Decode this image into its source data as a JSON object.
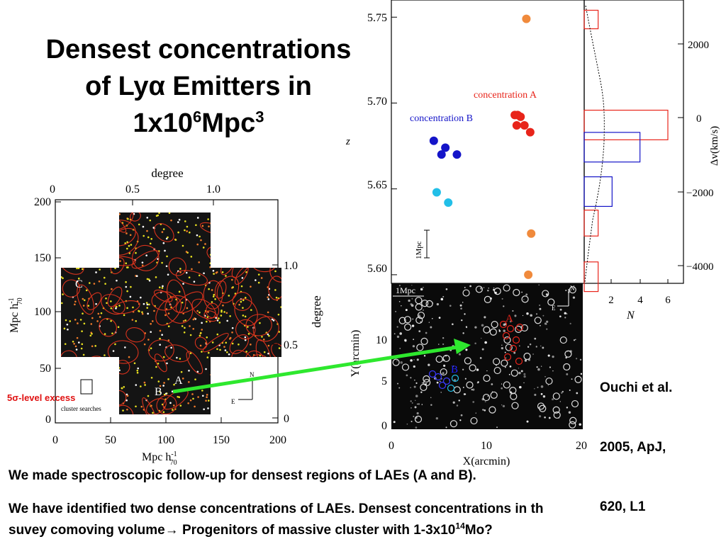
{
  "title": {
    "line1": "Densest concentrations",
    "line2": "of Lyα Emitters in",
    "line3_pre": "1x10",
    "line3_sup1": "6",
    "line3_mid": "Mpc",
    "line3_sup2": "3"
  },
  "left_map": {
    "top_axis_label": "degree",
    "top_ticks": [
      "0",
      "0.5",
      "1.0"
    ],
    "right_axis_label": "degree",
    "right_ticks": [
      "1.0",
      "0.5",
      "0"
    ],
    "left_axis_label": "Mpc h",
    "left_axis_sup": "-1",
    "left_axis_sub": "70",
    "left_ticks": [
      "200",
      "150",
      "100",
      "50",
      "0"
    ],
    "bottom_axis_label": "Mpc h",
    "bottom_axis_sup": "-1",
    "bottom_axis_sub": "70",
    "bottom_ticks": [
      "0",
      "50",
      "100",
      "150",
      "200"
    ],
    "marker_a": "A",
    "marker_b": "B",
    "marker_c": "C",
    "compass_e": "E",
    "compass_n": "N",
    "cluster_note": "cluster searches",
    "excess_label": "5σ-level excess"
  },
  "redshift_plot": {
    "y_ticks": [
      "5.75",
      "5.70",
      "5.65",
      "5.60"
    ],
    "y_label": "z",
    "scale_label": "1Mpc",
    "label_a": "concentration A",
    "label_b": "concentration B",
    "colors": {
      "a": "#e8241a",
      "b": "#1414c8",
      "b_light": "#22bfe8",
      "outlier": "#f08a3c"
    }
  },
  "chart_data": [
    {
      "type": "scatter",
      "ylabel": "z",
      "ylim": [
        5.595,
        5.76
      ],
      "series": [
        {
          "name": "concentration A",
          "x": [
            12.8,
            13.1,
            13.4,
            13.0,
            13.8,
            14.4
          ],
          "y": [
            5.693,
            5.693,
            5.692,
            5.687,
            5.687,
            5.683
          ]
        },
        {
          "name": "concentration B",
          "x": [
            4.4,
            5.6,
            5.2,
            6.8
          ],
          "y": [
            5.678,
            5.674,
            5.67,
            5.67
          ]
        },
        {
          "x": [
            4.7,
            5.9
          ],
          "y": [
            5.648,
            5.642
          ]
        },
        {
          "x": [
            14.0,
            14.5,
            14.2
          ],
          "y": [
            5.749,
            5.624,
            5.6
          ]
        }
      ]
    },
    {
      "type": "bar",
      "xlabel": "N",
      "ylabel": "Δv(km/s)",
      "x_ticks": [
        "2",
        "4",
        "6"
      ],
      "y_ticks": [
        "2000",
        "0",
        "−2000",
        "−4000"
      ],
      "series": [
        {
          "bins": [
            [
              2400,
              2900
            ],
            [
              -600,
              200
            ],
            [
              -2500,
              -3200
            ],
            [
              -3900,
              -4700
            ]
          ],
          "values": [
            1,
            6,
            1,
            1
          ]
        },
        {
          "bins": [
            [
              -1200,
              -400
            ],
            [
              -1600,
              -2400
            ]
          ],
          "values": [
            4,
            2
          ]
        }
      ]
    }
  ],
  "sky_image": {
    "y_label": "Y(arcmin)",
    "x_label": "X(arcmin)",
    "y_ticks": [
      "10",
      "5",
      "0"
    ],
    "x_ticks": [
      "0",
      "10",
      "20"
    ],
    "scale_label": "1Mpc",
    "marker_a": "A",
    "marker_b": "B",
    "compass_n": "N",
    "compass_e": "E"
  },
  "citation": {
    "line1": "Ouchi et al.",
    "line2": "2005, ApJ,",
    "line3": "620, L1"
  },
  "paragraph1": "We made spectroscopic follow-up for densest regions of LAEs (A and B).",
  "paragraph2_line1": "We have identified two dense concentrations of LAEs. Densest concentrations in th",
  "paragraph2_line2_pre": "suvey comoving volume→ Progenitors of massive cluster with 1-3x10",
  "paragraph2_sup": "14",
  "paragraph2_post": "Mo?"
}
